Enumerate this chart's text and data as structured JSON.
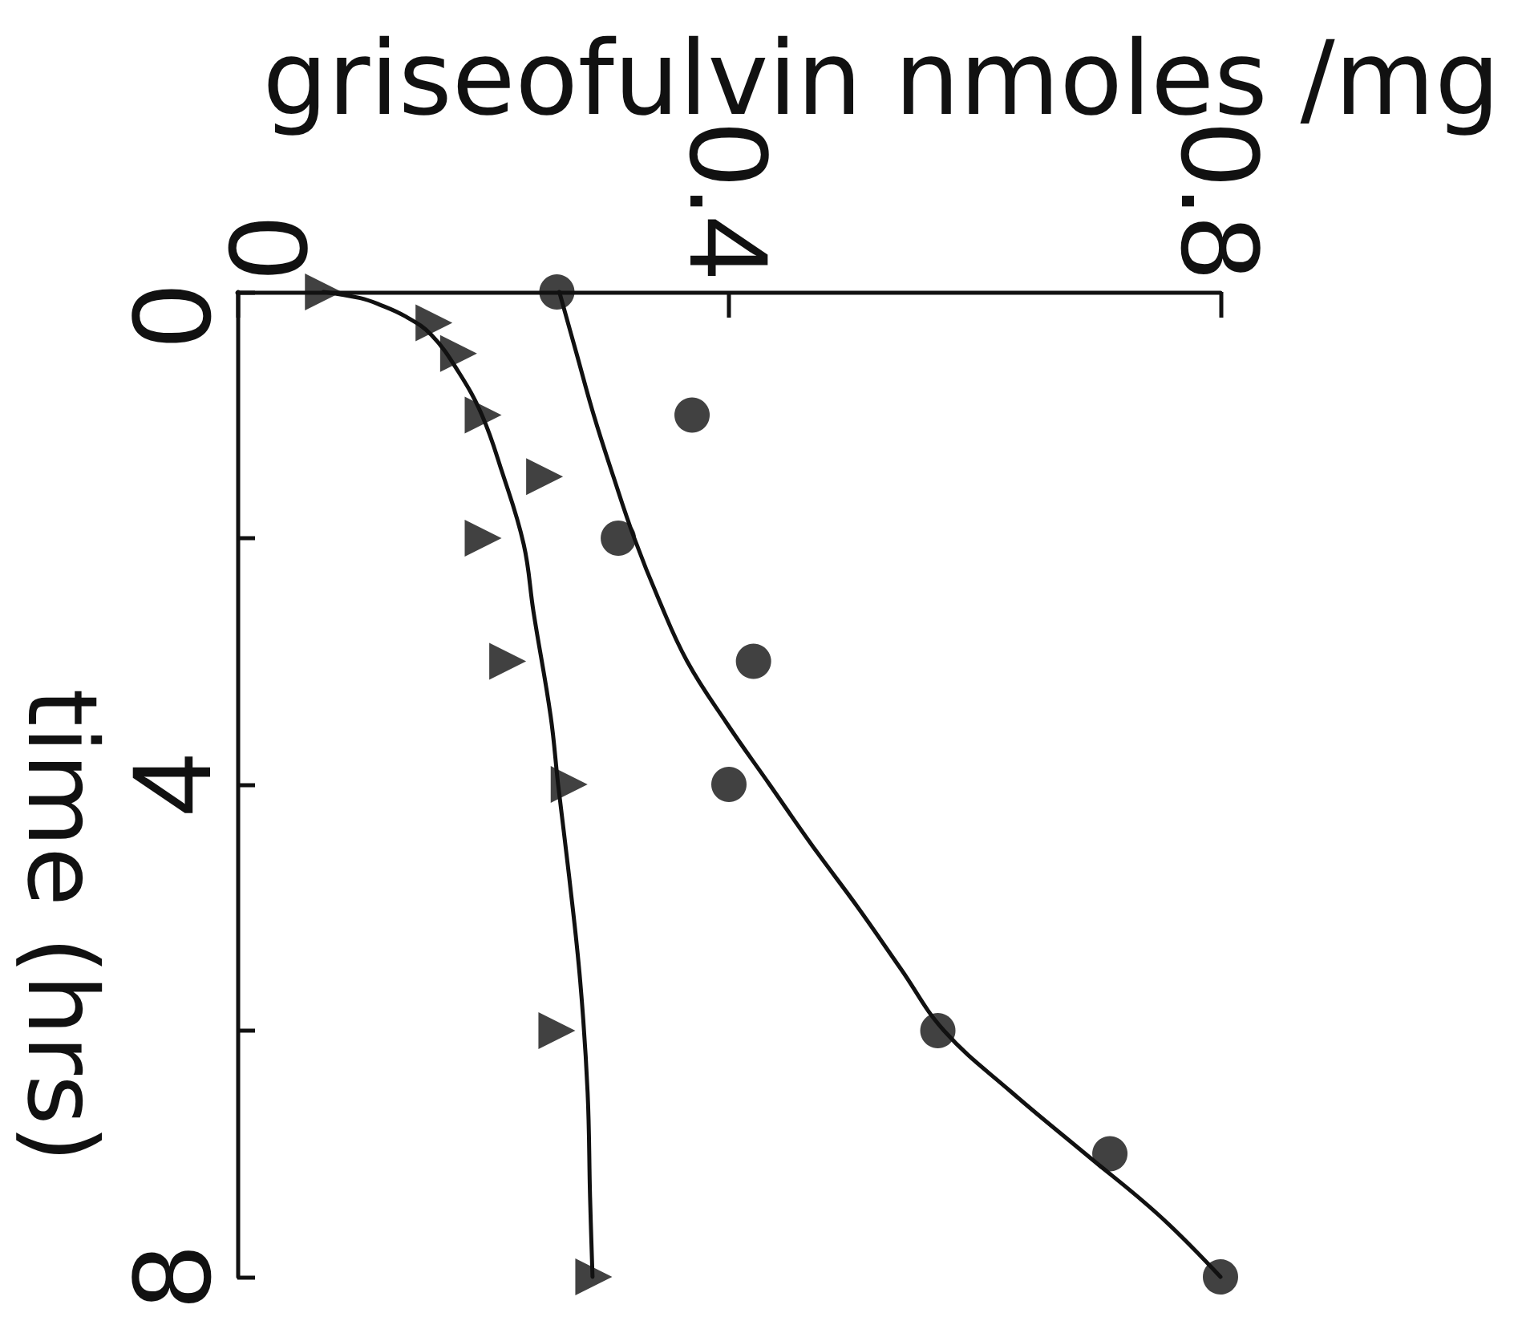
{
  "chart_data": {
    "type": "scatter",
    "xlabel": "griseofulvin nmoles /mg",
    "ylabel": "time (hrs)",
    "xlim": [
      0,
      0.8
    ],
    "xticks": [
      0,
      0.4,
      0.8
    ],
    "ylim": [
      8,
      0
    ],
    "yticks": [
      0,
      {
        "value": 2,
        "label": null
      },
      4,
      {
        "value": 6,
        "label": null
      },
      8
    ],
    "series": [
      {
        "type": "line",
        "marker": "none",
        "color": "#111111",
        "x": [
          0.262,
          0.276,
          0.29,
          0.306,
          0.323,
          0.343,
          0.366,
          0.398,
          0.433,
          0.468,
          0.505,
          0.54,
          0.575,
          0.63,
          0.69,
          0.75,
          0.8
        ],
        "values": [
          0,
          0.5,
          1,
          1.5,
          2,
          2.5,
          3,
          3.5,
          4,
          4.5,
          5,
          5.5,
          6,
          6.5,
          7,
          7.5,
          8
        ]
      },
      {
        "type": "line",
        "marker": "none",
        "color": "#111111",
        "x": [
          0.07,
          0.1,
          0.115,
          0.137,
          0.158,
          0.18,
          0.199,
          0.215,
          0.233,
          0.241,
          0.255,
          0.261,
          0.27,
          0.279,
          0.285,
          0.287,
          0.289
        ],
        "values": [
          0,
          0.05,
          0.1,
          0.2,
          0.35,
          0.65,
          1,
          1.45,
          2.05,
          2.6,
          3.45,
          4,
          4.75,
          5.6,
          6.5,
          7.35,
          8
        ]
      },
      {
        "marker": "circle",
        "color": "#111111",
        "x": [
          0.26,
          0.37,
          0.31,
          0.42,
          0.4,
          0.57,
          0.71,
          0.8
        ],
        "values": [
          0,
          1,
          2,
          3,
          4,
          6,
          7,
          8
        ]
      },
      {
        "marker": "triangle",
        "color": "#111111",
        "x": [
          0.07,
          0.16,
          0.18,
          0.2,
          0.25,
          0.2,
          0.22,
          0.27,
          0.26,
          0.29
        ],
        "values": [
          0,
          0.25,
          0.5,
          1,
          1.5,
          2,
          3,
          4,
          6,
          8
        ]
      }
    ]
  }
}
